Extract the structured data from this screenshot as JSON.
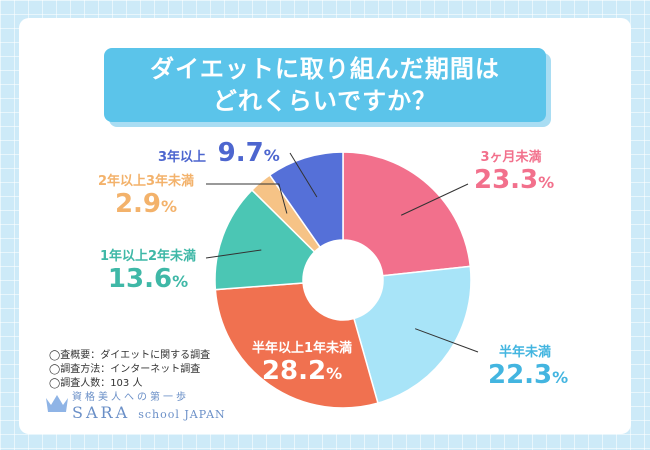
{
  "chart_data": {
    "type": "pie",
    "title": "ダイエットに取り組んだ期間はどれくらいですか？",
    "title_lines": [
      "ダイエットに取り組んだ期間は",
      "どれくらいですか？"
    ],
    "slices": [
      {
        "label": "3ヶ月未満",
        "value": 23.3,
        "color": "#f2708c"
      },
      {
        "label": "半年未満",
        "value": 22.3,
        "color": "#a8e4f8"
      },
      {
        "label": "半年以上1年未満",
        "value": 28.2,
        "color": "#f07150"
      },
      {
        "label": "1年以上2年未満",
        "value": 13.6,
        "color": "#4bc6b4"
      },
      {
        "label": "2年以上3年未満",
        "value": 2.9,
        "color": "#f6c386"
      },
      {
        "label": "3年以上",
        "value": 9.7,
        "color": "#5570d8"
      }
    ],
    "value_texts": [
      "23.3",
      "22.3",
      "28.2",
      "13.6",
      "2.9",
      "9.7"
    ],
    "unit": "%",
    "donut": true
  },
  "notes": [
    "◯査概要：ダイエットに関する調査",
    "◯調査方法：インターネット調査",
    "◯調査人数：103 人"
  ],
  "logo": {
    "tagline": "資格美人への第一歩",
    "brand": "SARA",
    "brand_rest": "school JAPAN"
  }
}
